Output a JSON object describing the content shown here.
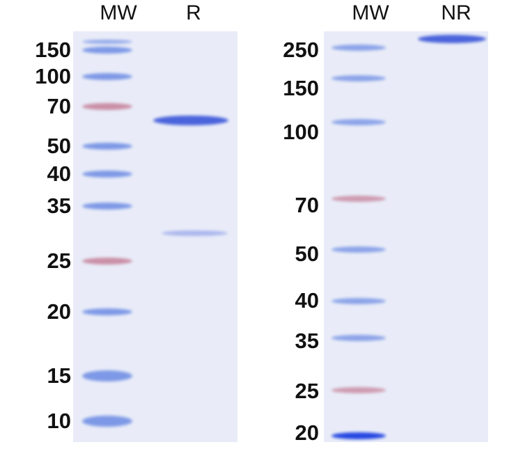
{
  "left_gel": {
    "lanes": [
      "MW",
      "R"
    ],
    "ladder": [
      "150",
      "100",
      "70",
      "50",
      "40",
      "35",
      "25",
      "20",
      "15",
      "10"
    ]
  },
  "right_gel": {
    "lanes": [
      "MW",
      "NR"
    ],
    "ladder": [
      "250",
      "150",
      "100",
      "70",
      "50",
      "40",
      "35",
      "25",
      "20"
    ]
  },
  "colors": {
    "ladder_blue": "#5a7de0",
    "ladder_pink": "#c0708a",
    "sample_band": "#3a55d8",
    "gel_bg": "#e9ecf8"
  }
}
